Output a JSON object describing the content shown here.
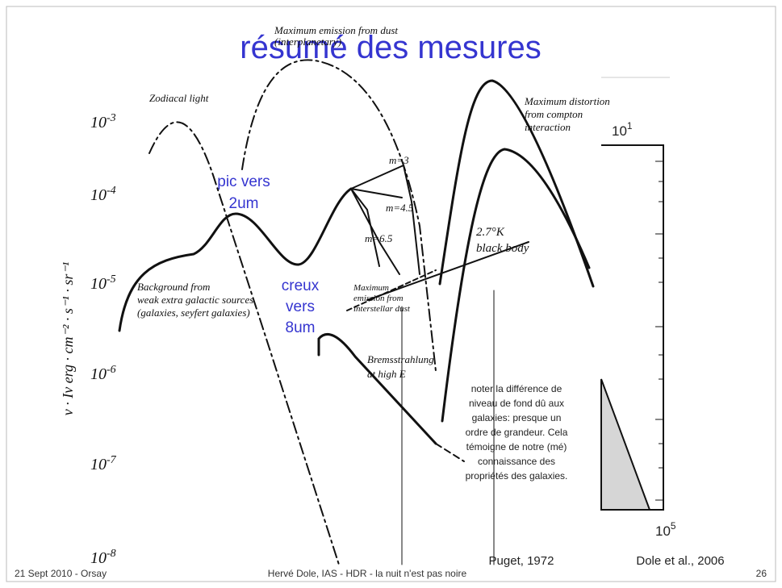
{
  "title": "résumé des mesures",
  "annotations": {
    "peak": [
      "pic vers",
      "2um"
    ],
    "dip": [
      "creux",
      "vers",
      "8um"
    ]
  },
  "note": [
    "noter la différence de",
    "niveau de fond dû aux",
    "galaxies: presque un",
    "ordre de grandeur. Cela",
    "témoigne de notre (mé)",
    "connaissance des",
    "propriétés des galaxies."
  ],
  "credits": [
    "Puget, 1972",
    "Dole et al., 2006"
  ],
  "footer": {
    "left": "21 Sept 2010 - Orsay",
    "center": "Hervé Dole, IAS - HDR - la nuit n'est pas noire",
    "page": "26"
  },
  "sketch": {
    "y_axis_label": "ν · Iν   erg · cm⁻² · s⁻¹ · sr⁻¹",
    "y_ticks": [
      {
        "base": "10",
        "exp": "-3"
      },
      {
        "base": "10",
        "exp": "-4"
      },
      {
        "base": "10",
        "exp": "-5"
      },
      {
        "base": "10",
        "exp": "-6"
      },
      {
        "base": "10",
        "exp": "-7"
      },
      {
        "base": "10",
        "exp": "-8"
      }
    ],
    "labels": {
      "zodiacal": [
        "Zodiacal light"
      ],
      "interplanetary": [
        "Maximum emission from dust",
        "(interplanetary)"
      ],
      "compton": [
        "Maximum distortion",
        "from compton",
        "interaction"
      ],
      "m3": [
        "m=3"
      ],
      "m45": [
        "m=4.5"
      ],
      "m65": [
        "m=6.5"
      ],
      "blackbody": [
        "2.7°K",
        "black body"
      ],
      "background": [
        "Background from",
        "weak extra galactic sources",
        "(galaxies, seyfert galaxies)"
      ],
      "interstellar": [
        "Maximum",
        "emission from",
        "interstellar dust"
      ],
      "bremsstrahlung": [
        "Bremsstrahlung",
        "at high E"
      ]
    }
  },
  "inset": {
    "ticks": [
      {
        "base": "10",
        "exp": "1"
      },
      {
        "base": "10",
        "exp": "5"
      }
    ]
  }
}
